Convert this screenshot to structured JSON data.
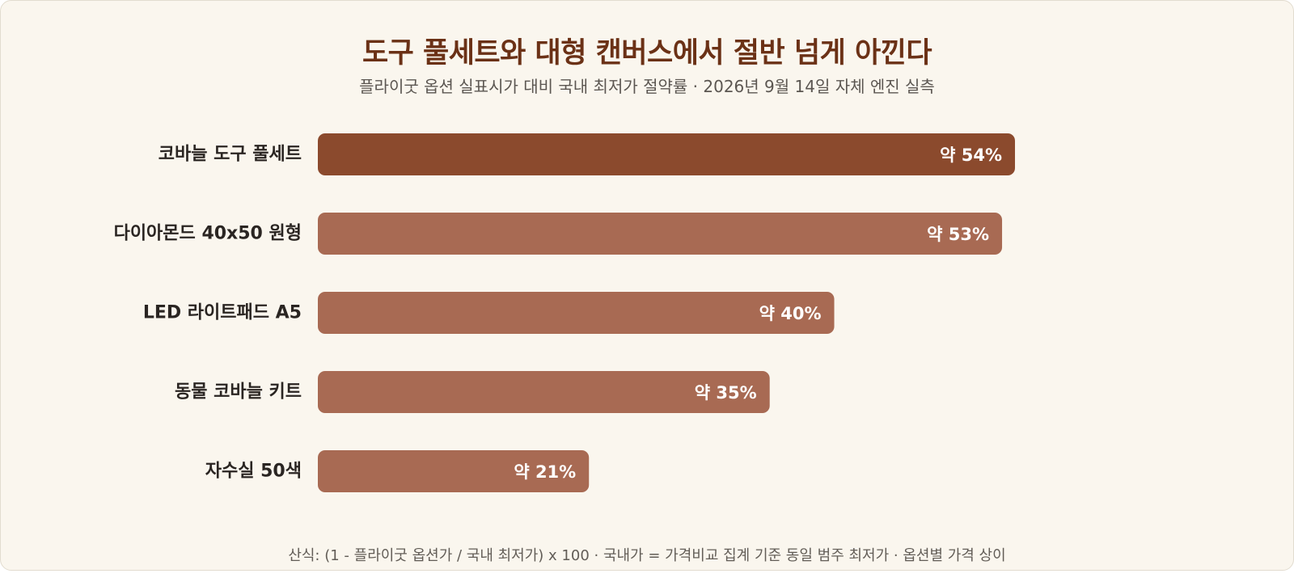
{
  "colors": {
    "highlight_bar": "#8b4a2d",
    "bar": "#a86a53",
    "value_text": "#ffffff",
    "title": "#6b3116"
  },
  "title": "도구 풀세트와 대형 캔버스에서 절반 넘게 아낀다",
  "subtitle": "플라이굿 옵션 실표시가 대비 국내 최저가 절약률 · 2026년 9월 14일 자체 엔진 실측",
  "footnote": "산식: (1 - 플라이굿 옵션가 / 국내 최저가) x 100 · 국내가 = 가격비교 집계 기준 동일 범주 최저가 · 옵션별 가격 상이",
  "chart_data": {
    "type": "bar",
    "orientation": "horizontal",
    "categories": [
      "코바늘 도구 풀세트",
      "다이아몬드 40x50 원형",
      "LED 라이트패드 A5",
      "동물 코바늘 키트",
      "자수실 50색"
    ],
    "values": [
      54,
      53,
      40,
      35,
      21
    ],
    "value_labels": [
      "약 54%",
      "약 53%",
      "약 40%",
      "약 35%",
      "약 21%"
    ],
    "highlight_index": 0,
    "xlim": [
      0,
      100
    ],
    "grid": false,
    "legend": "none"
  }
}
